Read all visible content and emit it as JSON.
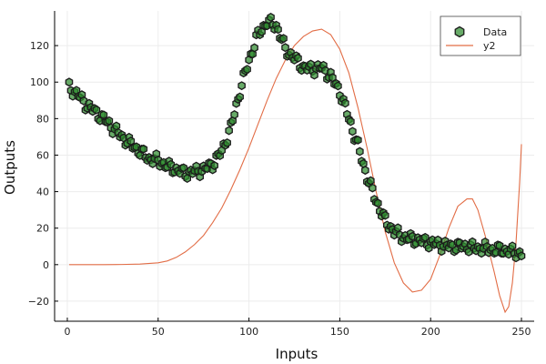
{
  "chart_data": {
    "type": "scatter",
    "title": "",
    "xlabel": "Inputs",
    "ylabel": "Outputs",
    "xlim": [
      -7,
      257
    ],
    "ylim": [
      -31,
      139
    ],
    "xticks": [
      0,
      50,
      100,
      150,
      200,
      250
    ],
    "yticks": [
      -20,
      0,
      20,
      40,
      60,
      80,
      100,
      120
    ],
    "grid": true,
    "legend_position": "top-right",
    "colors": {
      "data_fill": "#2e8b2e",
      "data_edge": "#1b1b1b",
      "line": "#e26d46",
      "grid": "#ececec",
      "axis": "#000000"
    },
    "series": [
      {
        "name": "Data",
        "kind": "scatter",
        "anchors": [
          [
            1,
            97
          ],
          [
            5,
            94
          ],
          [
            10,
            88
          ],
          [
            15,
            84
          ],
          [
            20,
            80
          ],
          [
            25,
            75
          ],
          [
            30,
            70
          ],
          [
            35,
            66
          ],
          [
            40,
            62
          ],
          [
            45,
            58
          ],
          [
            50,
            57
          ],
          [
            55,
            54
          ],
          [
            60,
            52
          ],
          [
            65,
            50
          ],
          [
            70,
            51
          ],
          [
            75,
            52
          ],
          [
            80,
            55
          ],
          [
            85,
            62
          ],
          [
            90,
            75
          ],
          [
            95,
            95
          ],
          [
            100,
            112
          ],
          [
            105,
            126
          ],
          [
            110,
            133
          ],
          [
            115,
            131
          ],
          [
            120,
            118
          ],
          [
            125,
            113
          ],
          [
            130,
            108
          ],
          [
            135,
            107
          ],
          [
            140,
            108
          ],
          [
            145,
            103
          ],
          [
            150,
            95
          ],
          [
            155,
            80
          ],
          [
            160,
            65
          ],
          [
            165,
            48
          ],
          [
            170,
            35
          ],
          [
            175,
            24
          ],
          [
            180,
            18
          ],
          [
            185,
            15
          ],
          [
            190,
            14
          ],
          [
            195,
            13
          ],
          [
            200,
            12
          ],
          [
            205,
            11
          ],
          [
            210,
            10
          ],
          [
            215,
            10
          ],
          [
            220,
            10
          ],
          [
            225,
            9
          ],
          [
            230,
            9
          ],
          [
            235,
            8
          ],
          [
            240,
            8
          ],
          [
            245,
            7
          ],
          [
            250,
            6
          ]
        ]
      },
      {
        "name": "y2",
        "kind": "line",
        "values": [
          [
            1,
            0
          ],
          [
            20,
            0
          ],
          [
            30,
            0.1
          ],
          [
            40,
            0.3
          ],
          [
            50,
            1
          ],
          [
            55,
            2
          ],
          [
            60,
            4
          ],
          [
            65,
            7
          ],
          [
            70,
            11
          ],
          [
            75,
            16
          ],
          [
            80,
            23
          ],
          [
            85,
            31
          ],
          [
            90,
            41
          ],
          [
            95,
            52
          ],
          [
            100,
            64
          ],
          [
            105,
            77
          ],
          [
            110,
            90
          ],
          [
            115,
            102
          ],
          [
            120,
            112
          ],
          [
            125,
            120
          ],
          [
            130,
            125
          ],
          [
            135,
            128
          ],
          [
            140,
            129
          ],
          [
            145,
            126
          ],
          [
            150,
            118
          ],
          [
            155,
            105
          ],
          [
            160,
            86
          ],
          [
            165,
            64
          ],
          [
            170,
            40
          ],
          [
            175,
            18
          ],
          [
            180,
            1
          ],
          [
            185,
            -10
          ],
          [
            190,
            -15
          ],
          [
            195,
            -14
          ],
          [
            200,
            -8
          ],
          [
            205,
            5
          ],
          [
            210,
            20
          ],
          [
            215,
            32
          ],
          [
            220,
            36
          ],
          [
            223,
            36
          ],
          [
            226,
            30
          ],
          [
            230,
            16
          ],
          [
            235,
            -4
          ],
          [
            238,
            -17
          ],
          [
            241,
            -26
          ],
          [
            243,
            -23
          ],
          [
            245,
            -10
          ],
          [
            247,
            12
          ],
          [
            249,
            45
          ],
          [
            250,
            66
          ]
        ]
      }
    ]
  }
}
